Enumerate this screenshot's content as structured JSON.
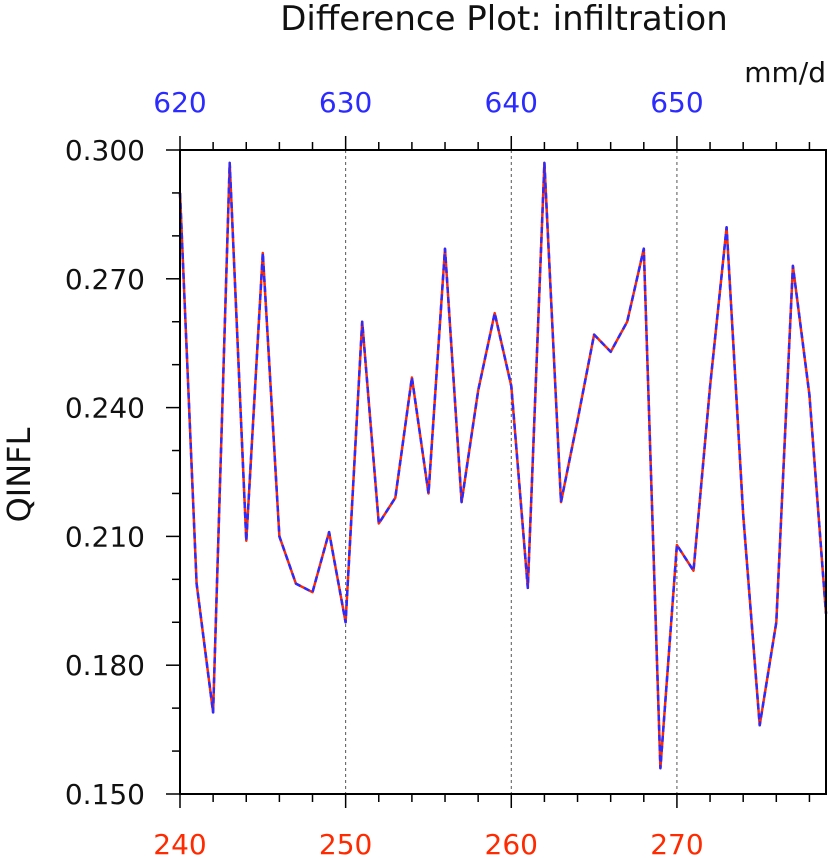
{
  "chart_data": {
    "type": "line",
    "title": "Difference Plot: infiltration",
    "ylabel": "QINFL",
    "units": "mm/d",
    "xlim": [
      240,
      279
    ],
    "ylim": [
      0.15,
      0.3
    ],
    "x_ticks_bottom": [
      "240",
      "250",
      "260",
      "270"
    ],
    "x_ticks_top": [
      "620",
      "630",
      "640",
      "650"
    ],
    "y_ticks": [
      "0.150",
      "0.180",
      "0.210",
      "0.240",
      "0.270",
      "0.300"
    ],
    "x": [
      240,
      241,
      242,
      243,
      244,
      245,
      246,
      247,
      248,
      249,
      250,
      251,
      252,
      253,
      254,
      255,
      256,
      257,
      258,
      259,
      260,
      261,
      262,
      263,
      264,
      265,
      266,
      267,
      268,
      269,
      270,
      271,
      272,
      273,
      274,
      275,
      276,
      277,
      278,
      279
    ],
    "series": [
      {
        "color": "#ff2a00",
        "values": [
          0.29,
          0.199,
          0.169,
          0.297,
          0.209,
          0.276,
          0.21,
          0.199,
          0.197,
          0.211,
          0.19,
          0.26,
          0.213,
          0.219,
          0.247,
          0.22,
          0.277,
          0.218,
          0.244,
          0.262,
          0.245,
          0.198,
          0.297,
          0.218,
          0.237,
          0.257,
          0.253,
          0.26,
          0.277,
          0.156,
          0.208,
          0.202,
          0.245,
          0.282,
          0.215,
          0.166,
          0.19,
          0.273,
          0.243,
          0.192
        ]
      },
      {
        "color": "#2b2bff",
        "values": [
          0.29,
          0.199,
          0.169,
          0.297,
          0.209,
          0.276,
          0.21,
          0.199,
          0.197,
          0.211,
          0.19,
          0.26,
          0.213,
          0.219,
          0.247,
          0.22,
          0.277,
          0.218,
          0.244,
          0.262,
          0.245,
          0.198,
          0.297,
          0.218,
          0.237,
          0.257,
          0.253,
          0.26,
          0.277,
          0.156,
          0.208,
          0.202,
          0.245,
          0.282,
          0.215,
          0.166,
          0.19,
          0.273,
          0.243,
          0.192
        ]
      }
    ],
    "grid": "vertical-dotted",
    "colors": {
      "axis": "#000000",
      "bottom_tick_labels": "#ff2a00",
      "top_tick_labels": "#2b2bff",
      "grid": "#555555"
    }
  }
}
